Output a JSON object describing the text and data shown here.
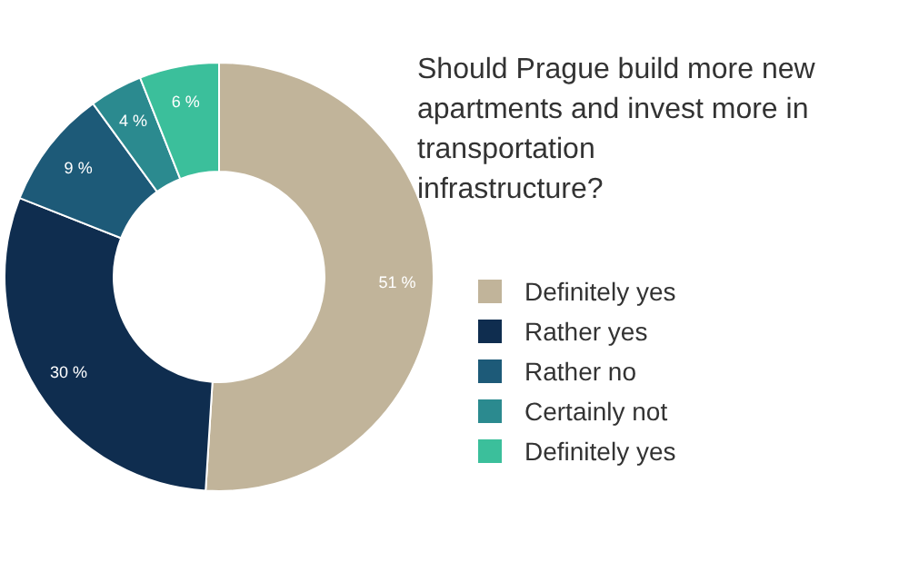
{
  "chart_data": {
    "type": "donut",
    "title": "Should Prague build more new apartments and invest more in transportation infrastructure?",
    "categories": [
      "Definitely yes",
      "Rather yes",
      "Rather no",
      "Certainly not",
      "Definitely yes"
    ],
    "values": [
      51,
      30,
      9,
      4,
      6
    ],
    "value_labels": [
      "51 %",
      "30 %",
      "9 %",
      "4 %",
      "6 %"
    ],
    "colors": [
      "#c1b49a",
      "#0f2d4f",
      "#1d5a78",
      "#2b8a8f",
      "#3bbf9b"
    ],
    "legend": "right"
  }
}
